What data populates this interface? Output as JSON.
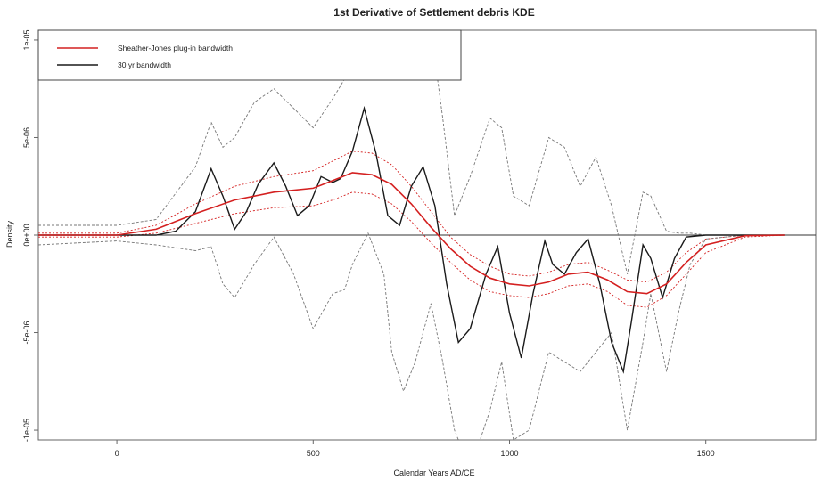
{
  "chart_data": {
    "type": "line",
    "title": "1st Derivative of Settlement debris KDE",
    "xlabel": "Calendar Years AD/CE",
    "ylabel": "Density",
    "xlim": [
      -200,
      1780
    ],
    "ylim": [
      -1.05e-05,
      1.05e-05
    ],
    "x_ticks": [
      0,
      500,
      1000,
      1500
    ],
    "x_tick_labels": [
      "0",
      "500",
      "1000",
      "1500"
    ],
    "y_ticks": [
      1e-05,
      5e-06,
      0,
      -5e-06,
      -1e-05
    ],
    "y_tick_labels": [
      "1e-05",
      "5e-06",
      "0e+00",
      "-5e-06",
      "-1e-05"
    ],
    "legend_position": "top-left",
    "colors": {
      "sj": "#d42020",
      "bw30": "#1a1a1a",
      "zero": "#333333",
      "axis": "#666666"
    },
    "series": [
      {
        "name": "Sheather-Jones plug-in bandwidth",
        "color": "#d42020",
        "x": [
          -200,
          0,
          100,
          200,
          300,
          400,
          500,
          550,
          600,
          650,
          700,
          750,
          800,
          850,
          900,
          950,
          1000,
          1050,
          1100,
          1150,
          1200,
          1250,
          1300,
          1350,
          1400,
          1450,
          1500,
          1600,
          1700
        ],
        "y": [
          0,
          0,
          3e-07,
          1.1e-06,
          1.8e-06,
          2.2e-06,
          2.4e-06,
          2.8e-06,
          3.2e-06,
          3.1e-06,
          2.6e-06,
          1.6e-06,
          4e-07,
          -7e-07,
          -1.6e-06,
          -2.2e-06,
          -2.5e-06,
          -2.6e-06,
          -2.4e-06,
          -2e-06,
          -1.9e-06,
          -2.3e-06,
          -2.9e-06,
          -3e-06,
          -2.5e-06,
          -1.4e-06,
          -5e-07,
          -3e-08,
          0
        ]
      },
      {
        "name": "30 yr bandwidth",
        "color": "#1a1a1a",
        "x": [
          -200,
          0,
          100,
          150,
          200,
          240,
          270,
          300,
          330,
          360,
          400,
          430,
          460,
          490,
          520,
          550,
          570,
          600,
          630,
          660,
          690,
          720,
          750,
          780,
          810,
          840,
          870,
          900,
          940,
          970,
          1000,
          1030,
          1060,
          1090,
          1110,
          1140,
          1170,
          1200,
          1230,
          1260,
          1290,
          1310,
          1340,
          1360,
          1390,
          1420,
          1450,
          1500,
          1600,
          1700
        ],
        "y": [
          0,
          0,
          0,
          2e-07,
          1.2e-06,
          3.4e-06,
          2e-06,
          3e-07,
          1.2e-06,
          2.6e-06,
          3.7e-06,
          2.5e-06,
          1e-06,
          1.5e-06,
          3e-06,
          2.7e-06,
          2.9e-06,
          4.3e-06,
          6.5e-06,
          4.2e-06,
          1e-06,
          5e-07,
          2.5e-06,
          3.5e-06,
          1.5e-06,
          -2.5e-06,
          -5.5e-06,
          -4.8e-06,
          -2e-06,
          -6e-07,
          -4e-06,
          -6.3e-06,
          -3e-06,
          -3e-07,
          -1.5e-06,
          -2e-06,
          -9e-07,
          -2e-07,
          -2.5e-06,
          -5.5e-06,
          -7e-06,
          -4.5e-06,
          -5e-07,
          -1.2e-06,
          -3.2e-06,
          -1.2e-06,
          -1e-07,
          0,
          0,
          0
        ]
      }
    ],
    "envelopes": [
      {
        "color": "#d42020",
        "x": [
          -200,
          0,
          100,
          200,
          300,
          400,
          500,
          550,
          600,
          650,
          700,
          750,
          800,
          850,
          900,
          950,
          1000,
          1050,
          1100,
          1150,
          1200,
          1250,
          1300,
          1350,
          1400,
          1450,
          1500,
          1600,
          1700
        ],
        "upper": [
          1e-07,
          1e-07,
          5e-07,
          1.6e-06,
          2.5e-06,
          3e-06,
          3.3e-06,
          3.8e-06,
          4.3e-06,
          4.2e-06,
          3.6e-06,
          2.5e-06,
          1.2e-06,
          -1e-07,
          -1e-06,
          -1.6e-06,
          -2e-06,
          -2.1e-06,
          -1.9e-06,
          -1.5e-06,
          -1.4e-06,
          -1.8e-06,
          -2.3e-06,
          -2.4e-06,
          -1.9e-06,
          -9e-07,
          -2e-07,
          0,
          0
        ],
        "lower": [
          -1e-07,
          -1e-07,
          1e-07,
          6e-07,
          1.1e-06,
          1.4e-06,
          1.5e-06,
          1.8e-06,
          2.2e-06,
          2.1e-06,
          1.6e-06,
          7e-07,
          -4e-07,
          -1.4e-06,
          -2.3e-06,
          -2.9e-06,
          -3.1e-06,
          -3.2e-06,
          -3e-06,
          -2.6e-06,
          -2.5e-06,
          -2.9e-06,
          -3.6e-06,
          -3.7e-06,
          -3.1e-06,
          -2e-06,
          -9e-07,
          -1e-07,
          0
        ]
      },
      {
        "color": "#777777",
        "x": [
          -200,
          -100,
          0,
          100,
          200,
          240,
          270,
          300,
          350,
          400,
          450,
          500,
          550,
          580,
          600,
          640,
          680,
          700,
          730,
          760,
          800,
          830,
          860,
          900,
          950,
          980,
          1010,
          1050,
          1100,
          1140,
          1180,
          1220,
          1260,
          1300,
          1340,
          1360,
          1400,
          1430,
          1460,
          1500,
          1600,
          1700
        ],
        "upper": [
          5e-07,
          5e-07,
          5e-07,
          8e-07,
          3.5e-06,
          5.8e-06,
          4.5e-06,
          5e-06,
          6.8e-06,
          7.5e-06,
          6.5e-06,
          5.5e-06,
          7e-06,
          8e-06,
          9.5e-06,
          1.1e-05,
          1.2e-05,
          1.1e-05,
          8e-06,
          1e-05,
          1.05e-05,
          6e-06,
          1e-06,
          3e-06,
          6e-06,
          5.5e-06,
          2e-06,
          1.5e-06,
          5e-06,
          4.5e-06,
          2.5e-06,
          4e-06,
          1.5e-06,
          -2e-06,
          2.2e-06,
          2e-06,
          2e-07,
          1e-07,
          1e-07,
          0,
          0,
          0
        ],
        "lower": [
          -5e-07,
          -4e-07,
          -3e-07,
          -5e-07,
          -8e-07,
          -6e-07,
          -2.5e-06,
          -3.2e-06,
          -1.5e-06,
          -1e-07,
          -2e-06,
          -4.8e-06,
          -3e-06,
          -2.8e-06,
          -1.5e-06,
          1e-07,
          -2e-06,
          -6e-06,
          -8e-06,
          -6.5e-06,
          -3.5e-06,
          -6.5e-06,
          -1e-05,
          -1.2e-05,
          -9e-06,
          -6.5e-06,
          -1.05e-05,
          -1e-05,
          -6e-06,
          -6.5e-06,
          -7e-06,
          -6e-06,
          -5e-06,
          -1e-05,
          -5.5e-06,
          -3e-06,
          -7e-06,
          -4e-06,
          -1.5e-06,
          -2e-07,
          0,
          0
        ]
      }
    ]
  }
}
